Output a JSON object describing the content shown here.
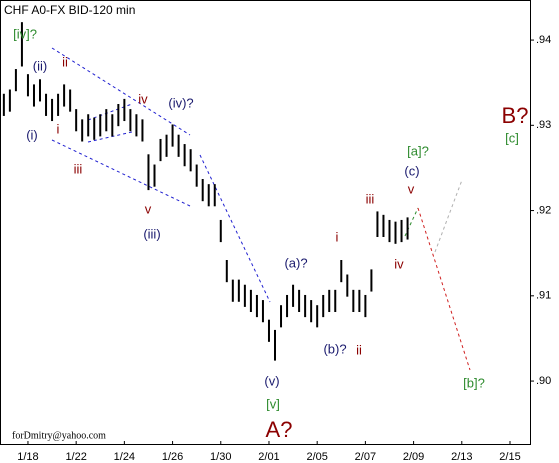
{
  "chart_data": {
    "type": "hlbar",
    "title": "CHF A0-FX BID-120 min",
    "footer": "forDmitry@yahoo.com",
    "color": "#000000",
    "x": [
      -1,
      -0.75,
      -0.5,
      -0.25,
      0,
      0.25,
      0.5,
      0.75,
      1,
      1.25,
      1.5,
      1.75,
      2,
      2.25,
      2.5,
      2.75,
      3,
      3.25,
      3.5,
      3.75,
      4,
      4.25,
      4.5,
      4.75,
      5,
      5.25,
      5.5,
      5.75,
      6,
      6.25,
      6.5,
      6.75,
      7,
      7.25,
      7.5,
      7.75,
      8,
      8.25,
      8.5,
      8.75,
      9,
      9.25,
      9.5,
      9.75,
      10,
      10.25,
      10.5,
      10.75,
      11,
      11.25,
      11.5,
      11.75,
      12,
      12.25,
      12.5,
      12.75,
      13,
      13.25,
      13.5,
      13.75,
      14,
      14.25,
      14.5,
      14.75,
      15,
      15.25,
      15.5,
      15.75
    ],
    "high": [
      0.9337,
      0.9342,
      0.9366,
      0.9421,
      0.936,
      0.9348,
      0.9354,
      0.9337,
      0.9331,
      0.9337,
      0.9348,
      0.9342,
      0.9319,
      0.9307,
      0.9313,
      0.9309,
      0.9313,
      0.9319,
      0.9313,
      0.9325,
      0.9331,
      0.9319,
      0.9313,
      0.9307,
      0.9266,
      0.9254,
      0.9284,
      0.9289,
      0.9301,
      0.9289,
      0.9278,
      0.9272,
      0.9254,
      0.9237,
      0.9231,
      0.9231,
      0.9189,
      0.9142,
      0.9119,
      0.9119,
      0.9113,
      0.9107,
      0.9101,
      0.9095,
      0.9072,
      0.906,
      0.9089,
      0.9101,
      0.9113,
      0.9107,
      0.9101,
      0.9095,
      0.9089,
      0.9101,
      0.9107,
      0.9107,
      0.9142,
      0.9125,
      0.9107,
      0.9107,
      0.9101,
      0.9131,
      0.9199,
      0.9195,
      0.9189,
      0.9187,
      0.9189,
      0.9192
    ],
    "low": [
      0.9311,
      0.9316,
      0.934,
      0.9369,
      0.9334,
      0.9322,
      0.9328,
      0.9311,
      0.9305,
      0.9311,
      0.9322,
      0.9316,
      0.9293,
      0.9281,
      0.9287,
      0.9283,
      0.9287,
      0.9293,
      0.9287,
      0.9299,
      0.9305,
      0.9293,
      0.9287,
      0.9281,
      0.9224,
      0.9228,
      0.9258,
      0.9263,
      0.9275,
      0.9263,
      0.9252,
      0.9246,
      0.9228,
      0.9211,
      0.9205,
      0.9205,
      0.9163,
      0.9116,
      0.9093,
      0.9093,
      0.9087,
      0.9081,
      0.9075,
      0.9069,
      0.9046,
      0.9024,
      0.9063,
      0.9075,
      0.9087,
      0.9081,
      0.9075,
      0.9069,
      0.9063,
      0.9075,
      0.9081,
      0.9081,
      0.9116,
      0.9099,
      0.9081,
      0.9081,
      0.9075,
      0.9105,
      0.9169,
      0.9169,
      0.9163,
      0.9161,
      0.9163,
      0.9166
    ],
    "xlim": [
      -1.16,
      20.83
    ],
    "xticks": [
      {
        "value": 0,
        "label": "1/18"
      },
      {
        "value": 2,
        "label": "1/22"
      },
      {
        "value": 4,
        "label": "1/24"
      },
      {
        "value": 6,
        "label": "1/26"
      },
      {
        "value": 8,
        "label": "1/30"
      },
      {
        "value": 10,
        "label": "2/01"
      },
      {
        "value": 12,
        "label": "2/05"
      },
      {
        "value": 14,
        "label": "2/07"
      },
      {
        "value": 16,
        "label": "2/09"
      },
      {
        "value": 18,
        "label": "2/13"
      },
      {
        "value": 20,
        "label": "2/15"
      }
    ],
    "ylim": [
      0.8925,
      0.9447
    ],
    "yticks": [
      {
        "value": 0.9,
        "label": ".90"
      },
      {
        "value": 0.91,
        "label": ".91"
      },
      {
        "value": 0.92,
        "label": ".92"
      },
      {
        "value": 0.93,
        "label": ".93"
      },
      {
        "value": 0.94,
        "label": ".94"
      }
    ],
    "annotations": [
      {
        "text": "[iv]?",
        "color": "#2e8b2e"
      },
      {
        "text": "(ii)",
        "color": "#1a1a6e"
      },
      {
        "text": "ii",
        "color": "#8b0000"
      },
      {
        "text": "(i)",
        "color": "#1a1a6e"
      },
      {
        "text": "i",
        "color": "#8b0000"
      },
      {
        "text": "iii",
        "color": "#8b0000"
      },
      {
        "text": "iv",
        "color": "#8b0000"
      },
      {
        "text": "(iv)?",
        "color": "#1a1a6e"
      },
      {
        "text": "v",
        "color": "#8b0000"
      },
      {
        "text": "(iii)",
        "color": "#1a1a6e"
      },
      {
        "text": "(a)?",
        "color": "#1a1a6e"
      },
      {
        "text": "i",
        "color": "#8b0000"
      },
      {
        "text": "iii",
        "color": "#8b0000"
      },
      {
        "text": "iv",
        "color": "#8b0000"
      },
      {
        "text": "(b)?",
        "color": "#1a1a6e"
      },
      {
        "text": "ii",
        "color": "#8b0000"
      },
      {
        "text": "(v)",
        "color": "#1a1a6e"
      },
      {
        "text": "[v]",
        "color": "#2e8b2e"
      },
      {
        "text": "A?",
        "color": "#8b0000"
      },
      {
        "text": "[a]?",
        "color": "#2e8b2e"
      },
      {
        "text": "(c)",
        "color": "#1a1a6e"
      },
      {
        "text": "v",
        "color": "#8b0000"
      },
      {
        "text": "B?",
        "color": "#8b0000"
      },
      {
        "text": "[c]",
        "color": "#2e8b2e"
      },
      {
        "text": "[b]?",
        "color": "#2e8b2e"
      }
    ]
  }
}
